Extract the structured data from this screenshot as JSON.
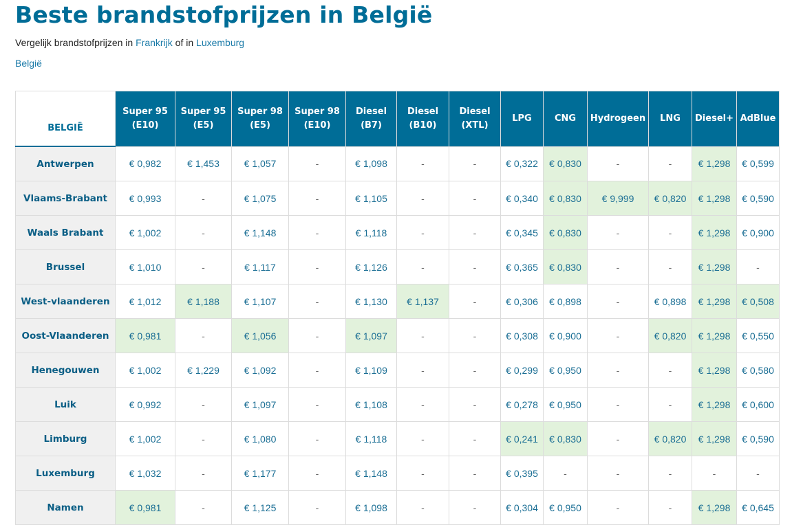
{
  "page": {
    "title": "Beste brandstofprijzen in België",
    "subtitle": {
      "prefix": "Vergelijk brandstofprijzen in ",
      "link1": "Frankrijk",
      "middle": " of in ",
      "link2": "Luxemburg"
    },
    "breadcrumb": "België"
  },
  "table": {
    "corner_label": "BELGIË",
    "columns": [
      {
        "line1": "Super 95",
        "line2": "(E10)"
      },
      {
        "line1": "Super 95",
        "line2": "(E5)"
      },
      {
        "line1": "Super 98",
        "line2": "(E5)"
      },
      {
        "line1": "Super 98",
        "line2": "(E10)"
      },
      {
        "line1": "Diesel",
        "line2": "(B7)"
      },
      {
        "line1": "Diesel",
        "line2": "(B10)"
      },
      {
        "line1": "Diesel",
        "line2": "(XTL)"
      },
      {
        "line1": "LPG",
        "line2": ""
      },
      {
        "line1": "CNG",
        "line2": ""
      },
      {
        "line1": "Hydrogeen",
        "line2": ""
      },
      {
        "line1": "LNG",
        "line2": ""
      },
      {
        "line1": "Diesel+",
        "line2": ""
      },
      {
        "line1": "AdBlue",
        "line2": ""
      }
    ],
    "rows": [
      {
        "region": "Antwerpen",
        "cells": [
          "€ 0,982",
          "€ 1,453",
          "€ 1,057",
          "-",
          "€ 1,098",
          "-",
          "-",
          "€ 0,322",
          "€ 0,830",
          "-",
          "-",
          "€ 1,298",
          "€ 0,599"
        ],
        "best": [
          8,
          11
        ]
      },
      {
        "region": "Vlaams-Brabant",
        "cells": [
          "€ 0,993",
          "-",
          "€ 1,075",
          "-",
          "€ 1,105",
          "-",
          "-",
          "€ 0,340",
          "€ 0,830",
          "€ 9,999",
          "€ 0,820",
          "€ 1,298",
          "€ 0,590"
        ],
        "best": [
          8,
          9,
          10,
          11
        ]
      },
      {
        "region": "Waals Brabant",
        "cells": [
          "€ 1,002",
          "-",
          "€ 1,148",
          "-",
          "€ 1,118",
          "-",
          "-",
          "€ 0,345",
          "€ 0,830",
          "-",
          "-",
          "€ 1,298",
          "€ 0,900"
        ],
        "best": [
          8,
          11
        ]
      },
      {
        "region": "Brussel",
        "cells": [
          "€ 1,010",
          "-",
          "€ 1,117",
          "-",
          "€ 1,126",
          "-",
          "-",
          "€ 0,365",
          "€ 0,830",
          "-",
          "-",
          "€ 1,298",
          "-"
        ],
        "best": [
          8,
          11
        ]
      },
      {
        "region": "West-vlaanderen",
        "cells": [
          "€ 1,012",
          "€ 1,188",
          "€ 1,107",
          "-",
          "€ 1,130",
          "€ 1,137",
          "-",
          "€ 0,306",
          "€ 0,898",
          "-",
          "€ 0,898",
          "€ 1,298",
          "€ 0,508"
        ],
        "best": [
          1,
          5,
          11,
          12
        ]
      },
      {
        "region": "Oost-Vlaanderen",
        "cells": [
          "€ 0,981",
          "-",
          "€ 1,056",
          "-",
          "€ 1,097",
          "-",
          "-",
          "€ 0,308",
          "€ 0,900",
          "-",
          "€ 0,820",
          "€ 1,298",
          "€ 0,550"
        ],
        "best": [
          0,
          2,
          4,
          10,
          11
        ]
      },
      {
        "region": "Henegouwen",
        "cells": [
          "€ 1,002",
          "€ 1,229",
          "€ 1,092",
          "-",
          "€ 1,109",
          "-",
          "-",
          "€ 0,299",
          "€ 0,950",
          "-",
          "-",
          "€ 1,298",
          "€ 0,580"
        ],
        "best": [
          11
        ]
      },
      {
        "region": "Luik",
        "cells": [
          "€ 0,992",
          "-",
          "€ 1,097",
          "-",
          "€ 1,108",
          "-",
          "-",
          "€ 0,278",
          "€ 0,950",
          "-",
          "-",
          "€ 1,298",
          "€ 0,600"
        ],
        "best": [
          11
        ]
      },
      {
        "region": "Limburg",
        "cells": [
          "€ 1,002",
          "-",
          "€ 1,080",
          "-",
          "€ 1,118",
          "-",
          "-",
          "€ 0,241",
          "€ 0,830",
          "-",
          "€ 0,820",
          "€ 1,298",
          "€ 0,590"
        ],
        "best": [
          7,
          8,
          10,
          11
        ]
      },
      {
        "region": "Luxemburg",
        "cells": [
          "€ 1,032",
          "-",
          "€ 1,177",
          "-",
          "€ 1,148",
          "-",
          "-",
          "€ 0,395",
          "-",
          "-",
          "-",
          "-",
          "-"
        ],
        "best": []
      },
      {
        "region": "Namen",
        "cells": [
          "€ 0,981",
          "-",
          "€ 1,125",
          "-",
          "€ 1,098",
          "-",
          "-",
          "€ 0,304",
          "€ 0,950",
          "-",
          "-",
          "€ 1,298",
          "€ 0,645"
        ],
        "best": [
          0,
          11
        ]
      }
    ]
  },
  "colors": {
    "brand_blue": "#006d97",
    "link_blue": "#1a7aa8",
    "best_price_bg": "#e2f2dc",
    "region_bg": "#f0f0f0"
  }
}
